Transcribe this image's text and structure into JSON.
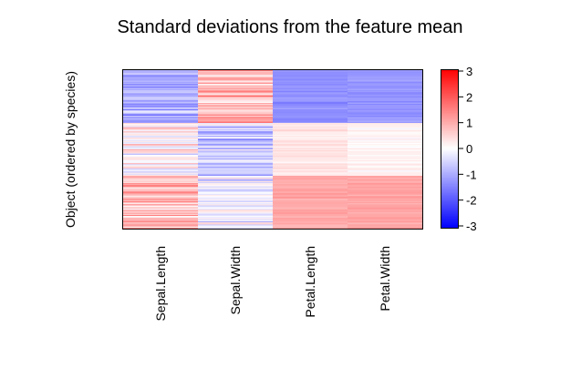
{
  "chart_data": {
    "type": "heatmap",
    "title": "Standard deviations from the feature mean",
    "ylabel": "Object (ordered by species)",
    "xlabel": "",
    "columns": [
      "Sepal.Length",
      "Sepal.Width",
      "Petal.Length",
      "Petal.Width"
    ],
    "n_rows": 150,
    "row_groups": [
      {
        "rows": 50,
        "mean_z": [
          -1.0,
          0.8,
          -1.3,
          -1.25
        ]
      },
      {
        "rows": 50,
        "mean_z": [
          0.1,
          -0.65,
          0.28,
          0.17
        ]
      },
      {
        "rows": 50,
        "mean_z": [
          0.9,
          -0.2,
          1.02,
          1.08
        ]
      }
    ],
    "color_scale": {
      "min": -3,
      "max": 3,
      "low_color": "#0000ff",
      "mid_color": "#ffffff",
      "high_color": "#ff0000",
      "ticks": [
        "3",
        "2",
        "1",
        "0",
        "-1",
        "-2",
        "-3"
      ]
    }
  }
}
